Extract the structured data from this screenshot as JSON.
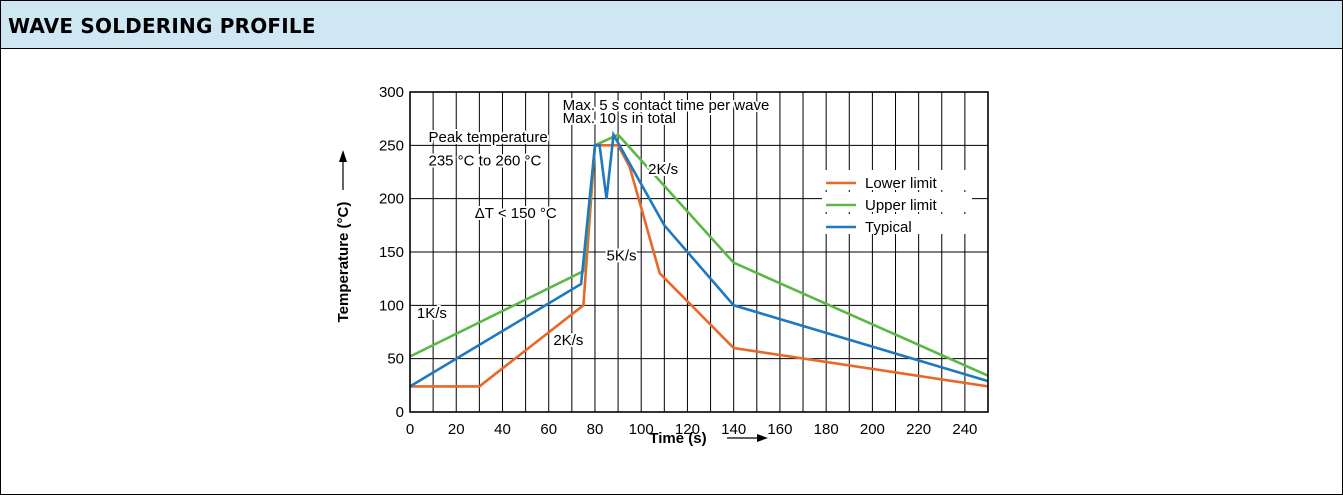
{
  "header": {
    "title": "WAVE SOLDERING PROFILE"
  },
  "colors": {
    "header_bg": "#cfe6f3",
    "lower": "#e8682a",
    "upper": "#5cb846",
    "typical": "#1f78c0"
  },
  "chart_data": {
    "type": "line",
    "title": "",
    "xlabel": "Time (s)",
    "ylabel": "Temperature (°C)",
    "xlim": [
      0,
      250
    ],
    "ylim": [
      0,
      300
    ],
    "xticks": [
      0,
      20,
      40,
      60,
      80,
      100,
      120,
      140,
      160,
      180,
      200,
      220,
      240
    ],
    "yticks": [
      0,
      50,
      100,
      150,
      200,
      250,
      300
    ],
    "grid": true,
    "legend_position": "right",
    "series": [
      {
        "name": "Lower limit",
        "color": "#e8682a",
        "x": [
          0,
          30,
          75,
          80,
          90,
          95,
          108,
          140,
          250
        ],
        "y": [
          24,
          24,
          100,
          250,
          250,
          230,
          130,
          60,
          24
        ]
      },
      {
        "name": "Upper limit",
        "color": "#5cb846",
        "x": [
          0,
          75,
          80,
          90,
          140,
          250
        ],
        "y": [
          52,
          132,
          250,
          260,
          140,
          34
        ]
      },
      {
        "name": "Typical",
        "color": "#1f78c0",
        "x": [
          0,
          74,
          80,
          82,
          85,
          88,
          110,
          140,
          250
        ],
        "y": [
          24,
          120,
          250,
          250,
          200,
          260,
          175,
          100,
          29
        ]
      }
    ],
    "annotations": [
      {
        "text": "Max. 5 s contact time per wave",
        "x": 66,
        "y": 283
      },
      {
        "text": "Max. 10 s in total",
        "x": 66,
        "y": 271
      },
      {
        "text": "Peak temperature",
        "x": 8,
        "y": 253
      },
      {
        "text": "235 °C to 260 °C",
        "x": 8,
        "y": 231
      },
      {
        "text": "2K/s",
        "x": 103,
        "y": 223
      },
      {
        "text": "ΔT < 150 °C",
        "x": 28,
        "y": 182
      },
      {
        "text": "5K/s",
        "x": 85,
        "y": 142
      },
      {
        "text": "1K/s",
        "x": 3,
        "y": 88
      },
      {
        "text": "2K/s",
        "x": 62,
        "y": 63
      }
    ]
  }
}
